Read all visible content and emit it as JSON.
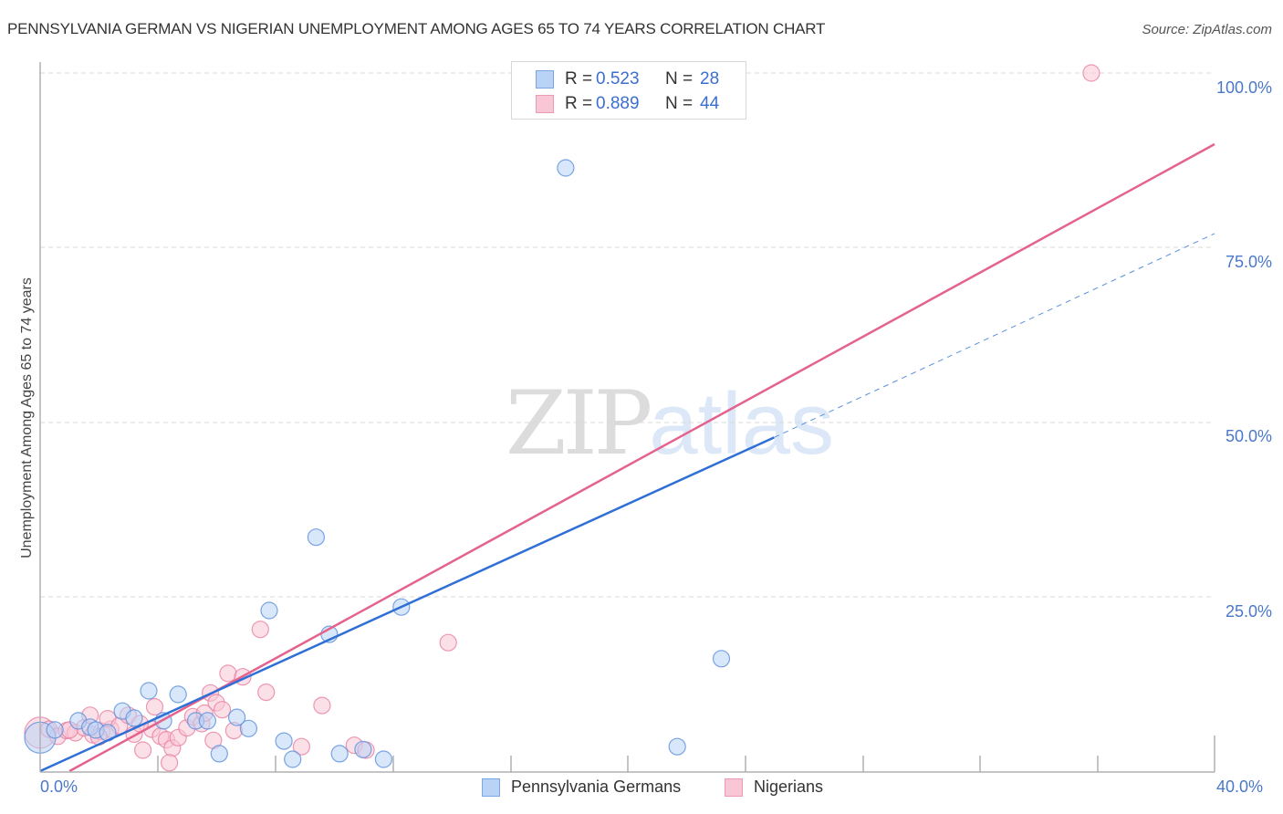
{
  "header": {
    "title": "PENNSYLVANIA GERMAN VS NIGERIAN UNEMPLOYMENT AMONG AGES 65 TO 74 YEARS CORRELATION CHART",
    "source": "Source: ZipAtlas.com"
  },
  "legend_top": {
    "rows": [
      {
        "swatch_color": "#b8d3f5",
        "r_label": "R =",
        "r_value": "0.523",
        "n_label": "N =",
        "n_value": "28"
      },
      {
        "swatch_color": "#f9c6d5",
        "r_label": "R =",
        "r_value": "0.889",
        "n_label": "N =",
        "n_value": "44"
      }
    ]
  },
  "legend_bottom": {
    "items": [
      {
        "label": "Pennsylvania Germans",
        "color": "#b8d3f5"
      },
      {
        "label": "Nigerians",
        "color": "#f9c6d5"
      }
    ]
  },
  "axes": {
    "ylabel": "Unemployment Among Ages 65 to 74 years",
    "y_ticks": [
      "100.0%",
      "75.0%",
      "50.0%",
      "25.0%"
    ],
    "x_ticks": [
      "0.0%",
      "40.0%"
    ]
  },
  "watermark": {
    "zip": "ZIP",
    "atlas": "atlas"
  },
  "colors": {
    "blue_fill": "#b8d3f5",
    "blue_stroke": "#5b8fdc",
    "blue_line": "#2f6fd6",
    "pink_fill": "#f9c6d5",
    "pink_stroke": "#e87fa0",
    "pink_line": "#e4638d",
    "tick_text": "#4a78c8"
  },
  "chart_data": {
    "type": "scatter",
    "title": "PENNSYLVANIA GERMAN VS NIGERIAN UNEMPLOYMENT AMONG AGES 65 TO 74 YEARS CORRELATION CHART",
    "xlabel": "",
    "ylabel": "Unemployment Among Ages 65 to 74 years",
    "xlim": [
      0,
      40
    ],
    "ylim": [
      0,
      100
    ],
    "x_tick_labels": [
      "0.0%",
      "40.0%"
    ],
    "y_tick_labels": [
      "25.0%",
      "50.0%",
      "75.0%",
      "100.0%"
    ],
    "grid": "horizontal dashed",
    "legend_position": "top-center and bottom",
    "series": [
      {
        "name": "Pennsylvania Germans",
        "R": 0.523,
        "N": 28,
        "points": [
          [
            0.0,
            4.8
          ],
          [
            0.5,
            5.9
          ],
          [
            1.3,
            7.2
          ],
          [
            1.7,
            6.3
          ],
          [
            1.9,
            5.9
          ],
          [
            2.3,
            5.5
          ],
          [
            2.8,
            8.6
          ],
          [
            3.2,
            7.6
          ],
          [
            3.7,
            11.5
          ],
          [
            4.2,
            7.2
          ],
          [
            4.7,
            11.0
          ],
          [
            5.3,
            7.2
          ],
          [
            5.7,
            7.2
          ],
          [
            6.1,
            2.5
          ],
          [
            6.7,
            7.7
          ],
          [
            7.1,
            6.1
          ],
          [
            7.8,
            23.0
          ],
          [
            8.3,
            4.3
          ],
          [
            8.6,
            1.7
          ],
          [
            9.4,
            33.5
          ],
          [
            9.85,
            19.6
          ],
          [
            10.2,
            2.5
          ],
          [
            11.0,
            3.1
          ],
          [
            11.7,
            1.7
          ],
          [
            12.3,
            23.5
          ],
          [
            17.9,
            86.4
          ],
          [
            21.7,
            3.5
          ],
          [
            23.2,
            16.1
          ]
        ],
        "trendline": {
          "x": [
            0,
            25
          ],
          "y": [
            0,
            47.8
          ],
          "extrapolated_dashed_to": [
            40,
            77
          ]
        }
      },
      {
        "name": "Nigerians",
        "R": 0.889,
        "N": 44,
        "points": [
          [
            0.0,
            5.5
          ],
          [
            0.3,
            6.0
          ],
          [
            0.6,
            5.0
          ],
          [
            0.9,
            5.8
          ],
          [
            1.2,
            5.5
          ],
          [
            1.5,
            6.2
          ],
          [
            1.8,
            5.2
          ],
          [
            2.1,
            5.7
          ],
          [
            2.4,
            6.0
          ],
          [
            1.7,
            8.0
          ],
          [
            2.3,
            7.5
          ],
          [
            2.7,
            6.5
          ],
          [
            3.0,
            8.0
          ],
          [
            3.2,
            5.3
          ],
          [
            3.5,
            3.0
          ],
          [
            3.8,
            6.0
          ],
          [
            4.1,
            5.0
          ],
          [
            3.9,
            9.2
          ],
          [
            4.3,
            4.5
          ],
          [
            4.5,
            3.3
          ],
          [
            4.4,
            1.2
          ],
          [
            4.7,
            4.8
          ],
          [
            5.0,
            6.2
          ],
          [
            5.2,
            7.8
          ],
          [
            5.5,
            6.8
          ],
          [
            5.6,
            8.3
          ],
          [
            5.8,
            11.2
          ],
          [
            6.0,
            9.8
          ],
          [
            6.2,
            8.8
          ],
          [
            6.4,
            14.0
          ],
          [
            6.6,
            5.8
          ],
          [
            6.9,
            13.5
          ],
          [
            7.5,
            20.3
          ],
          [
            7.7,
            11.3
          ],
          [
            8.9,
            3.5
          ],
          [
            9.6,
            9.4
          ],
          [
            10.7,
            3.7
          ],
          [
            11.1,
            3.0
          ],
          [
            13.9,
            18.4
          ],
          [
            1.0,
            5.9
          ],
          [
            2.0,
            4.9
          ],
          [
            3.4,
            6.8
          ],
          [
            5.9,
            4.4
          ],
          [
            35.8,
            100.0
          ]
        ],
        "trendline": {
          "x": [
            1,
            40
          ],
          "y": [
            0,
            89.8
          ]
        }
      }
    ]
  }
}
